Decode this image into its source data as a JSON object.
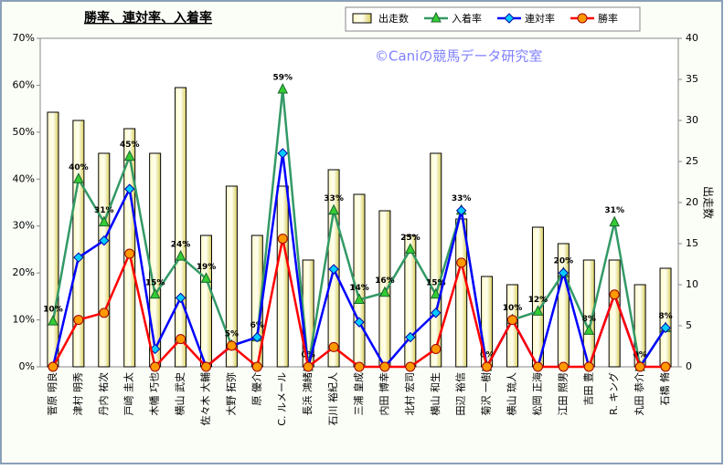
{
  "chart_data": {
    "type": "bar",
    "title": "勝率、連対率、入着率",
    "watermark": "©Caniの競馬データ研究室",
    "y2label": "出走数",
    "categories": [
      "菅原 明良",
      "津村 明秀",
      "丹内 祐次",
      "戸崎 圭太",
      "木幡 巧也",
      "横山 武史",
      "佐々木 大輔",
      "大野 拓弥",
      "原 優介",
      "C. ルメール",
      "長浜 鴻緒",
      "石川 裕紀人",
      "三浦 皇成",
      "内田 博幸",
      "北村 宏司",
      "横山 和生",
      "田辺 裕信",
      "菊沢 一樹",
      "横山 琉人",
      "松岡 正海",
      "江田 照男",
      "吉田 豊",
      "R. キング",
      "丸田 恭介",
      "石橋 脩"
    ],
    "series": [
      {
        "name": "出走数",
        "type": "bar",
        "axis": "y2",
        "color": "#eee68c",
        "values": [
          31,
          30,
          26,
          29,
          26,
          34,
          16,
          22,
          16,
          22,
          13,
          24,
          21,
          19,
          16,
          26,
          18,
          11,
          10,
          17,
          15,
          13,
          13,
          10,
          12
        ]
      },
      {
        "name": "入着率",
        "type": "line",
        "marker": "triangle",
        "color": "#339966",
        "marker_color": "#33cc33",
        "values": [
          9.7,
          40,
          30.8,
          44.8,
          15.4,
          23.5,
          18.8,
          4.5,
          6.3,
          59.1,
          0,
          33.3,
          14.3,
          15.8,
          25,
          15.4,
          33.3,
          0,
          10,
          11.8,
          20,
          7.7,
          30.8,
          0,
          8.3
        ],
        "value_labels": [
          "10%",
          "40%",
          "31%",
          "45%",
          "15%",
          "24%",
          "19%",
          "5%",
          "6%",
          "59%",
          "0%",
          "33%",
          "14%",
          "16%",
          "25%",
          "15%",
          "33%",
          "0%",
          "10%",
          "12%",
          "20%",
          "8%",
          "31%",
          "0%",
          "8%"
        ]
      },
      {
        "name": "連対率",
        "type": "line",
        "marker": "diamond",
        "color": "#0000ff",
        "marker_color": "#00ccff",
        "values": [
          0,
          23.3,
          26.9,
          37.9,
          3.8,
          14.7,
          0,
          4.5,
          6.3,
          45.5,
          0,
          20.8,
          9.5,
          0,
          6.3,
          11.5,
          33.3,
          0,
          10,
          0,
          20,
          0,
          15.4,
          0,
          8.3
        ]
      },
      {
        "name": "勝率",
        "type": "line",
        "marker": "circle",
        "color": "#ff0000",
        "marker_color": "#ff9900",
        "values": [
          0,
          10,
          11.5,
          24.1,
          0,
          5.9,
          0,
          4.5,
          0,
          27.3,
          0,
          4.2,
          0,
          0,
          0,
          3.8,
          22.2,
          0,
          10,
          0,
          0,
          0,
          15.4,
          0,
          0
        ]
      }
    ],
    "ylim": [
      0,
      70
    ],
    "yticks": [
      {
        "value": 0,
        "label": "0%"
      },
      {
        "value": 10,
        "label": "10%"
      },
      {
        "value": 20,
        "label": "20%"
      },
      {
        "value": 30,
        "label": "30%"
      },
      {
        "value": 40,
        "label": "40%"
      },
      {
        "value": 50,
        "label": "50%"
      },
      {
        "value": 60,
        "label": "60%"
      },
      {
        "value": 70,
        "label": "70%"
      }
    ],
    "y2lim": [
      0,
      40
    ],
    "y2ticks": [
      0,
      5,
      10,
      15,
      20,
      25,
      30,
      35,
      40
    ],
    "legend": "top-right",
    "grid": false
  }
}
